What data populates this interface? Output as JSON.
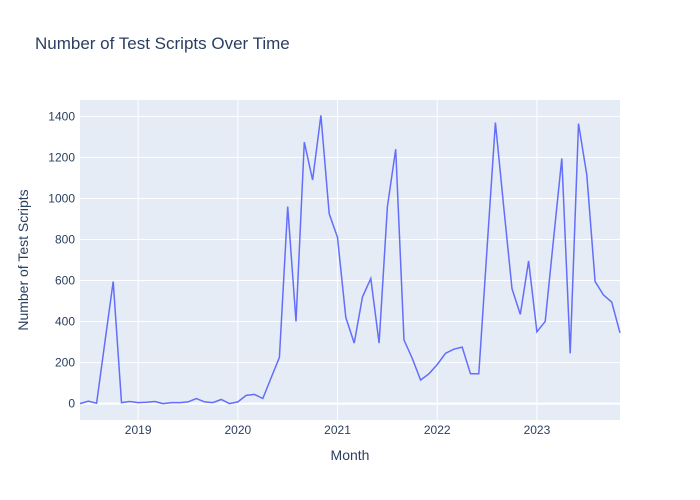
{
  "chart_data": {
    "type": "line",
    "title": "Number of Test Scripts Over Time",
    "xlabel": "Month",
    "ylabel": "Number of Test Scripts",
    "x_ticks": [
      "2019",
      "2020",
      "2021",
      "2022",
      "2023"
    ],
    "y_ticks": [
      "0",
      "200",
      "400",
      "600",
      "800",
      "1000",
      "1200",
      "1400"
    ],
    "xlim": [
      "2018-06",
      "2023-11"
    ],
    "ylim": [
      -80,
      1480
    ],
    "grid": true,
    "colors": {
      "line": "#636efa",
      "plot_bg": "#e5ecf6",
      "grid": "#ffffff"
    },
    "series": [
      {
        "x": [
          "2018-06",
          "2018-07",
          "2018-08",
          "2018-09",
          "2018-10",
          "2018-11",
          "2018-12",
          "2019-01",
          "2019-02",
          "2019-03",
          "2019-04",
          "2019-05",
          "2019-06",
          "2019-07",
          "2019-08",
          "2019-09",
          "2019-10",
          "2019-11",
          "2019-12",
          "2020-01",
          "2020-02",
          "2020-03",
          "2020-04",
          "2020-05",
          "2020-06",
          "2020-07",
          "2020-08",
          "2020-09",
          "2020-10",
          "2020-11",
          "2020-12",
          "2021-01",
          "2021-02",
          "2021-03",
          "2021-04",
          "2021-05",
          "2021-06",
          "2021-07",
          "2021-08",
          "2021-09",
          "2021-10",
          "2021-11",
          "2021-12",
          "2022-01",
          "2022-02",
          "2022-03",
          "2022-04",
          "2022-05",
          "2022-06",
          "2022-07",
          "2022-08",
          "2022-09",
          "2022-10",
          "2022-11",
          "2022-12",
          "2023-01",
          "2023-02",
          "2023-03",
          "2023-04",
          "2023-05",
          "2023-06",
          "2023-07",
          "2023-08",
          "2023-09",
          "2023-10",
          "2023-11"
        ],
        "values": [
          0,
          12,
          2,
          300,
          595,
          5,
          10,
          5,
          7,
          10,
          0,
          5,
          5,
          8,
          25,
          8,
          5,
          20,
          0,
          8,
          40,
          45,
          25,
          125,
          225,
          960,
          400,
          1275,
          1090,
          1405,
          925,
          810,
          420,
          295,
          520,
          610,
          295,
          960,
          1240,
          310,
          220,
          115,
          145,
          190,
          245,
          265,
          275,
          145,
          145,
          760,
          1370,
          960,
          560,
          435,
          695,
          350,
          400,
          800,
          1195,
          245,
          1365,
          1115,
          595,
          530,
          495,
          345
        ]
      }
    ]
  }
}
